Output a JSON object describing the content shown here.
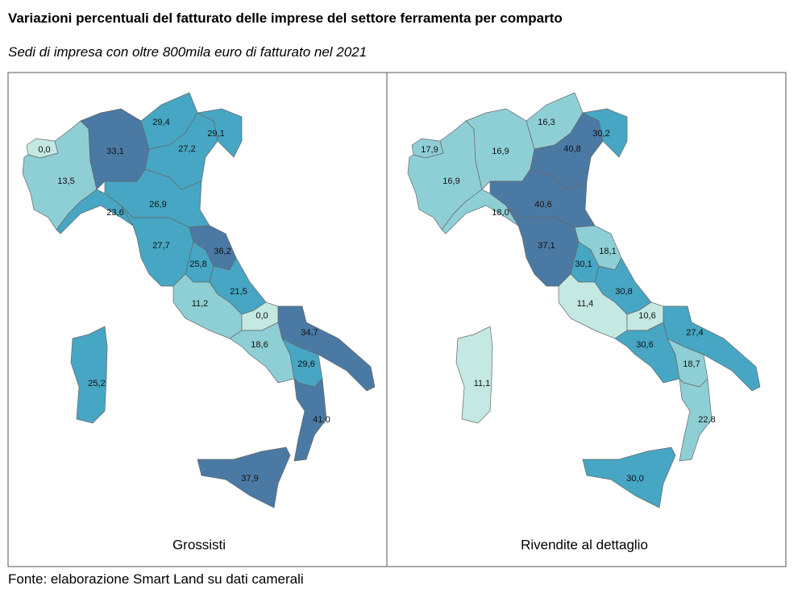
{
  "title": "Variazioni percentuali del fatturato delle imprese del settore ferramenta per comparto",
  "subtitle": "Sedi di impresa con oltre 800mila euro di fatturato nel 2021",
  "source": "Fonte: elaborazione Smart Land su dati camerali",
  "maps": [
    {
      "title": "Grossisti",
      "values": [
        0.0,
        13.5,
        33.1,
        29.4,
        27.2,
        29.1,
        23.6,
        26.9,
        27.7,
        25.8,
        36.2,
        11.2,
        21.5,
        0.0,
        18.6,
        34.7,
        29.6,
        41.0,
        37.9,
        25.2
      ],
      "value_labels": [
        "0,0",
        "13,5",
        "33,1",
        "29,4",
        "27,2",
        "29,1",
        "23,6",
        "26,9",
        "27,7",
        "25,8",
        "36,2",
        "11,2",
        "21,5",
        "0,0",
        "18,6",
        "34,7",
        "29,6",
        "41,0",
        "37,9",
        "25,2"
      ],
      "colors": [
        "#c4e8e2",
        "#8ecfd6",
        "#4a7aa4",
        "#46a6c4",
        "#46a6c4",
        "#46a6c4",
        "#46a6c4",
        "#46a6c4",
        "#46a6c4",
        "#46a6c4",
        "#4a7aa4",
        "#8ecfd6",
        "#46a6c4",
        "#c4e8e2",
        "#8ecfd6",
        "#4a7aa4",
        "#46a6c4",
        "#4a7aa4",
        "#4a7aa4",
        "#46a6c4"
      ]
    },
    {
      "title": "Rivendite al dettaglio",
      "values": [
        17.9,
        16.9,
        16.9,
        16.3,
        40.8,
        30.2,
        18.0,
        40.6,
        37.1,
        30.1,
        18.1,
        11.4,
        30.8,
        10.6,
        30.6,
        27.4,
        18.7,
        22.8,
        30.0,
        11.1
      ],
      "value_labels": [
        "17,9",
        "16,9",
        "16,9",
        "16,3",
        "40,8",
        "30,2",
        "18,0",
        "40,6",
        "37,1",
        "30,1",
        "18,1",
        "11,4",
        "30,8",
        "10,6",
        "30,6",
        "27,4",
        "18,7",
        "22,8",
        "30,0",
        "11,1"
      ],
      "colors": [
        "#8ecfd6",
        "#8ecfd6",
        "#8ecfd6",
        "#8ecfd6",
        "#4a7aa4",
        "#46a6c4",
        "#8ecfd6",
        "#4a7aa4",
        "#4a7aa4",
        "#46a6c4",
        "#8ecfd6",
        "#c4e8e2",
        "#46a6c4",
        "#c4e8e2",
        "#46a6c4",
        "#46a6c4",
        "#8ecfd6",
        "#8ecfd6",
        "#46a6c4",
        "#c4e8e2"
      ]
    }
  ]
}
